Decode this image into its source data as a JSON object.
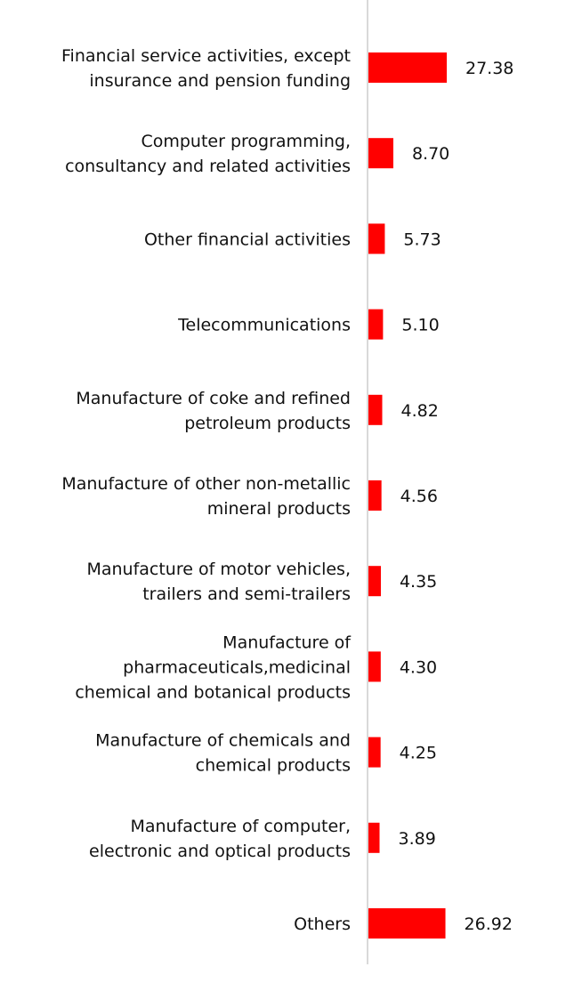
{
  "chart_data": {
    "type": "bar",
    "orientation": "horizontal",
    "categories": [
      [
        "Financial service activities, except",
        "insurance and pension funding"
      ],
      [
        "Computer programming,",
        "consultancy and related activities"
      ],
      [
        "Other financial activities"
      ],
      [
        "Telecommunications"
      ],
      [
        "Manufacture of coke and refined",
        "petroleum products"
      ],
      [
        "Manufacture of other non-metallic",
        "mineral products"
      ],
      [
        "Manufacture of motor vehicles,",
        "trailers and semi-trailers"
      ],
      [
        "Manufacture of",
        "pharmaceuticals,medicinal",
        "chemical and botanical products"
      ],
      [
        "Manufacture of chemicals and",
        "chemical products"
      ],
      [
        "Manufacture of computer,",
        "electronic and optical products"
      ],
      [
        "Others"
      ]
    ],
    "values": [
      27.38,
      8.7,
      5.73,
      5.1,
      4.82,
      4.56,
      4.35,
      4.3,
      4.25,
      3.89,
      26.92
    ],
    "value_labels": [
      "27.38",
      "8.70",
      "5.73",
      "5.10",
      "4.82",
      "4.56",
      "4.35",
      "4.30",
      "4.25",
      "3.89",
      "26.92"
    ],
    "xlim": [
      0,
      28
    ],
    "bar_color": "#ff0000",
    "axis_color": "#d9d9d9",
    "grid": false,
    "legend": "none"
  }
}
